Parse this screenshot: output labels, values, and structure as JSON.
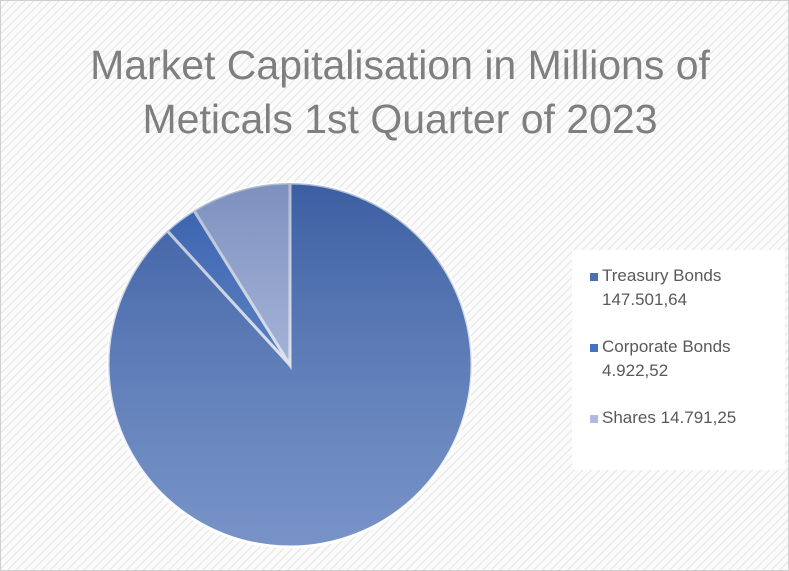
{
  "chart_data": {
    "type": "pie",
    "title": "Market Capitalisation in Millions of Meticals 1st Quarter of 2023",
    "categories": [
      "Treasury Bonds",
      "Corporate Bonds",
      "Shares"
    ],
    "values": [
      147501.64,
      4922.52,
      14791.25
    ],
    "value_labels": [
      "147.501,64",
      "4.922,52",
      "14.791,25"
    ],
    "colors": [
      "#4a6fb5",
      "#4472c4",
      "#aebbe0"
    ],
    "legend": "right"
  }
}
